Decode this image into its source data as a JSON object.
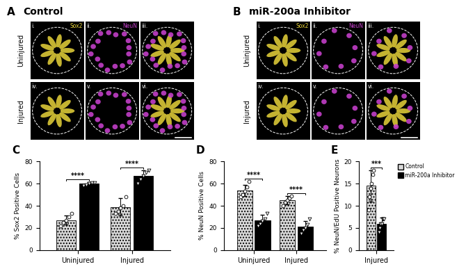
{
  "image_panels": [
    {
      "letter": "A",
      "title": "Control",
      "rows": [
        "Uninjured",
        "Injured"
      ],
      "channels": [
        "Sox2",
        "NeuN"
      ],
      "numerals": [
        [
          "i.",
          "ii.",
          "iii."
        ],
        [
          "iv.",
          "v.",
          "vi."
        ]
      ]
    },
    {
      "letter": "B",
      "title": "miR-200a Inhibitor",
      "rows": [
        "Uninjured",
        "Injured"
      ],
      "channels": [
        "Sox2",
        "NeuN"
      ],
      "numerals": [
        [
          "i.",
          "ii.",
          "iii."
        ],
        [
          "iv.",
          "v.",
          "vi."
        ]
      ]
    }
  ],
  "chart_data": [
    {
      "type": "bar",
      "panel": "C",
      "y_label": "% Sox2 Positive Cells",
      "categories": [
        "Uninjured",
        "Injured"
      ],
      "series": [
        {
          "color": "#d9d9d9",
          "marker": "o",
          "values": [
            27,
            39
          ],
          "errors": [
            4,
            8
          ],
          "points": [
            [
              22,
              25,
              27,
              30,
              33
            ],
            [
              33,
              35,
              38,
              40,
              48
            ]
          ]
        },
        {
          "color": "#000000",
          "marker": "v",
          "values": [
            60,
            67
          ],
          "errors": [
            1.5,
            5
          ],
          "points": [
            [
              58,
              59,
              60,
              61,
              61
            ],
            [
              60,
              64,
              67,
              70,
              72
            ]
          ]
        }
      ],
      "significance": [
        "****",
        "****"
      ],
      "ylim": [
        0,
        80
      ],
      "yticks": [
        0,
        20,
        40,
        60,
        80
      ]
    },
    {
      "type": "bar",
      "panel": "D",
      "y_label": "% NeuN Positive Cells",
      "categories": [
        "Uninjured",
        "Injured"
      ],
      "series": [
        {
          "color": "#d9d9d9",
          "marker": "o",
          "values": [
            54,
            45
          ],
          "errors": [
            5,
            4
          ],
          "points": [
            [
              48,
              50,
              53,
              57,
              62
            ],
            [
              40,
              43,
              45,
              47,
              49
            ]
          ]
        },
        {
          "color": "#000000",
          "marker": "v",
          "values": [
            27,
            21
          ],
          "errors": [
            5,
            5
          ],
          "points": [
            [
              22,
              24,
              26,
              28,
              33
            ],
            [
              15,
              18,
              20,
              23,
              28
            ]
          ]
        }
      ],
      "significance": [
        "****",
        "****"
      ],
      "ylim": [
        0,
        80
      ],
      "yticks": [
        0,
        20,
        40,
        60,
        80
      ]
    },
    {
      "type": "bar",
      "panel": "E",
      "y_label": "% NeuN/EdU Positive Neurons",
      "categories": [
        "Injured"
      ],
      "series": [
        {
          "name": "Control",
          "color": "#d9d9d9",
          "marker": "o",
          "values": [
            14.5
          ],
          "errors": [
            3.5
          ],
          "points": [
            [
              9,
              12,
              14,
              15,
              17,
              18
            ]
          ]
        },
        {
          "name": "miR-200a Inhibitor",
          "color": "#000000",
          "marker": "v",
          "values": [
            6
          ],
          "errors": [
            1.3
          ],
          "points": [
            [
              4,
              5,
              6,
              6,
              7,
              7,
              7
            ]
          ]
        }
      ],
      "significance": [
        "***"
      ],
      "legend": "upper left",
      "ylim": [
        0,
        20
      ],
      "yticks": [
        0,
        5,
        10,
        15,
        20
      ]
    }
  ]
}
